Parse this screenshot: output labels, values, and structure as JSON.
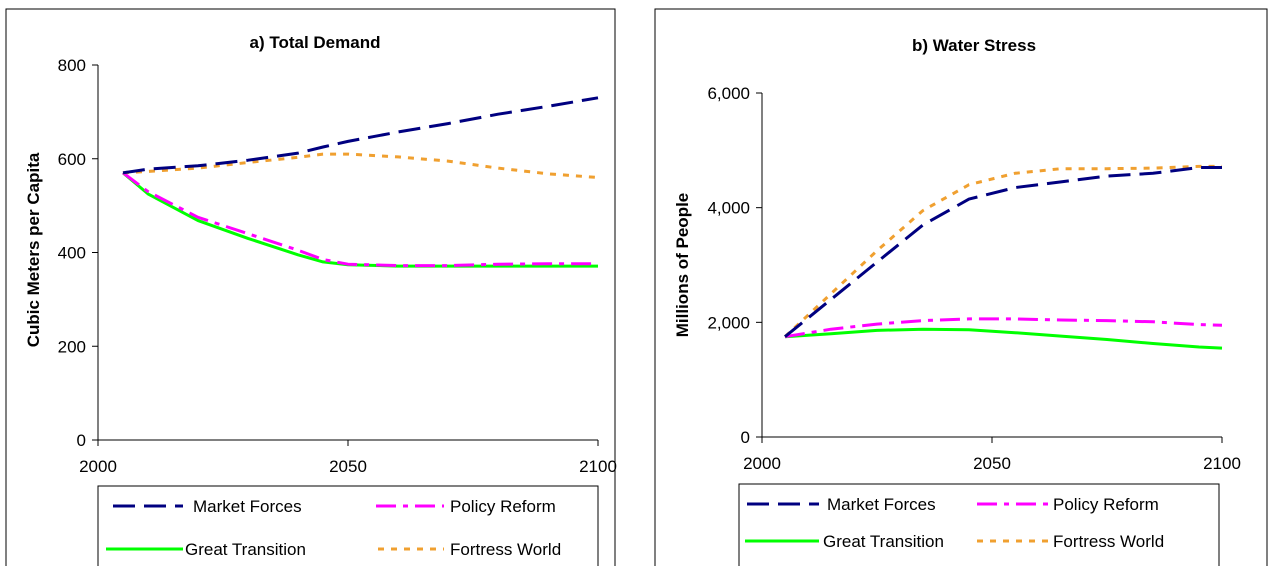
{
  "colors": {
    "market_forces": "#000080",
    "policy_reform": "#ff00ff",
    "great_transition": "#00ff00",
    "fortress_world": "#f0a030"
  },
  "chart_data": [
    {
      "type": "line",
      "title": "a) Total Demand",
      "xlabel": "",
      "ylabel": "Cubic Meters per Capita",
      "xlim": [
        2000,
        2100
      ],
      "ylim": [
        0,
        800
      ],
      "xticks": [
        2000,
        2050,
        2100
      ],
      "yticks": [
        0,
        200,
        400,
        600,
        800
      ],
      "ytick_labels": [
        "0",
        "200",
        "400",
        "600",
        "800"
      ],
      "grid": false,
      "legend": "bottom",
      "series": [
        {
          "key": "market_forces",
          "name": "Market Forces",
          "style": "dash",
          "x": [
            2005,
            2010,
            2020,
            2030,
            2040,
            2045,
            2050,
            2055,
            2060,
            2070,
            2080,
            2090,
            2100
          ],
          "y": [
            570,
            578,
            585,
            597,
            612,
            625,
            637,
            647,
            657,
            675,
            695,
            712,
            730
          ]
        },
        {
          "key": "policy_reform",
          "name": "Policy Reform",
          "style": "dashdot",
          "x": [
            2005,
            2010,
            2020,
            2030,
            2040,
            2045,
            2050,
            2060,
            2070,
            2080,
            2090,
            2100
          ],
          "y": [
            570,
            530,
            475,
            440,
            405,
            385,
            375,
            372,
            372,
            375,
            376,
            376
          ]
        },
        {
          "key": "great_transition",
          "name": "Great Transition",
          "style": "solid",
          "x": [
            2005,
            2010,
            2020,
            2030,
            2040,
            2045,
            2050,
            2060,
            2070,
            2080,
            2090,
            2100
          ],
          "y": [
            570,
            525,
            468,
            430,
            395,
            380,
            374,
            371,
            371,
            371,
            371,
            371
          ]
        },
        {
          "key": "fortress_world",
          "name": "Fortress World",
          "style": "dot",
          "x": [
            2005,
            2010,
            2020,
            2030,
            2040,
            2045,
            2050,
            2060,
            2070,
            2080,
            2090,
            2100
          ],
          "y": [
            570,
            573,
            580,
            592,
            603,
            610,
            610,
            604,
            595,
            580,
            568,
            560
          ]
        }
      ]
    },
    {
      "type": "line",
      "title": "b) Water Stress",
      "xlabel": "",
      "ylabel": "Millions of People",
      "xlim": [
        2000,
        2100
      ],
      "ylim": [
        0,
        6000
      ],
      "xticks": [
        2000,
        2050,
        2100
      ],
      "yticks": [
        0,
        2000,
        4000,
        6000
      ],
      "ytick_labels": [
        "0",
        "2,000",
        "4,000",
        "6,000"
      ],
      "grid": false,
      "legend": "bottom",
      "series": [
        {
          "key": "market_forces",
          "name": "Market Forces",
          "style": "dash",
          "x": [
            2005,
            2015,
            2025,
            2035,
            2045,
            2055,
            2065,
            2075,
            2085,
            2095,
            2100
          ],
          "y": [
            1750,
            2400,
            3050,
            3700,
            4150,
            4350,
            4450,
            4550,
            4600,
            4700,
            4700
          ]
        },
        {
          "key": "policy_reform",
          "name": "Policy Reform",
          "style": "dashdot",
          "x": [
            2005,
            2015,
            2025,
            2035,
            2045,
            2055,
            2065,
            2075,
            2085,
            2095,
            2100
          ],
          "y": [
            1750,
            1880,
            1970,
            2030,
            2060,
            2060,
            2040,
            2030,
            2010,
            1960,
            1950
          ]
        },
        {
          "key": "great_transition",
          "name": "Great Transition",
          "style": "solid",
          "x": [
            2005,
            2015,
            2025,
            2035,
            2045,
            2055,
            2065,
            2075,
            2085,
            2095,
            2100
          ],
          "y": [
            1750,
            1800,
            1860,
            1880,
            1870,
            1820,
            1760,
            1700,
            1630,
            1570,
            1550
          ]
        },
        {
          "key": "fortress_world",
          "name": "Fortress World",
          "style": "dot",
          "x": [
            2005,
            2015,
            2025,
            2035,
            2045,
            2055,
            2065,
            2075,
            2085,
            2095,
            2100
          ],
          "y": [
            1750,
            2500,
            3250,
            3950,
            4400,
            4600,
            4680,
            4680,
            4690,
            4720,
            4720
          ]
        }
      ],
      "legend_order": [
        "market_forces",
        "policy_reform",
        "great_transition",
        "fortress_world"
      ]
    }
  ]
}
